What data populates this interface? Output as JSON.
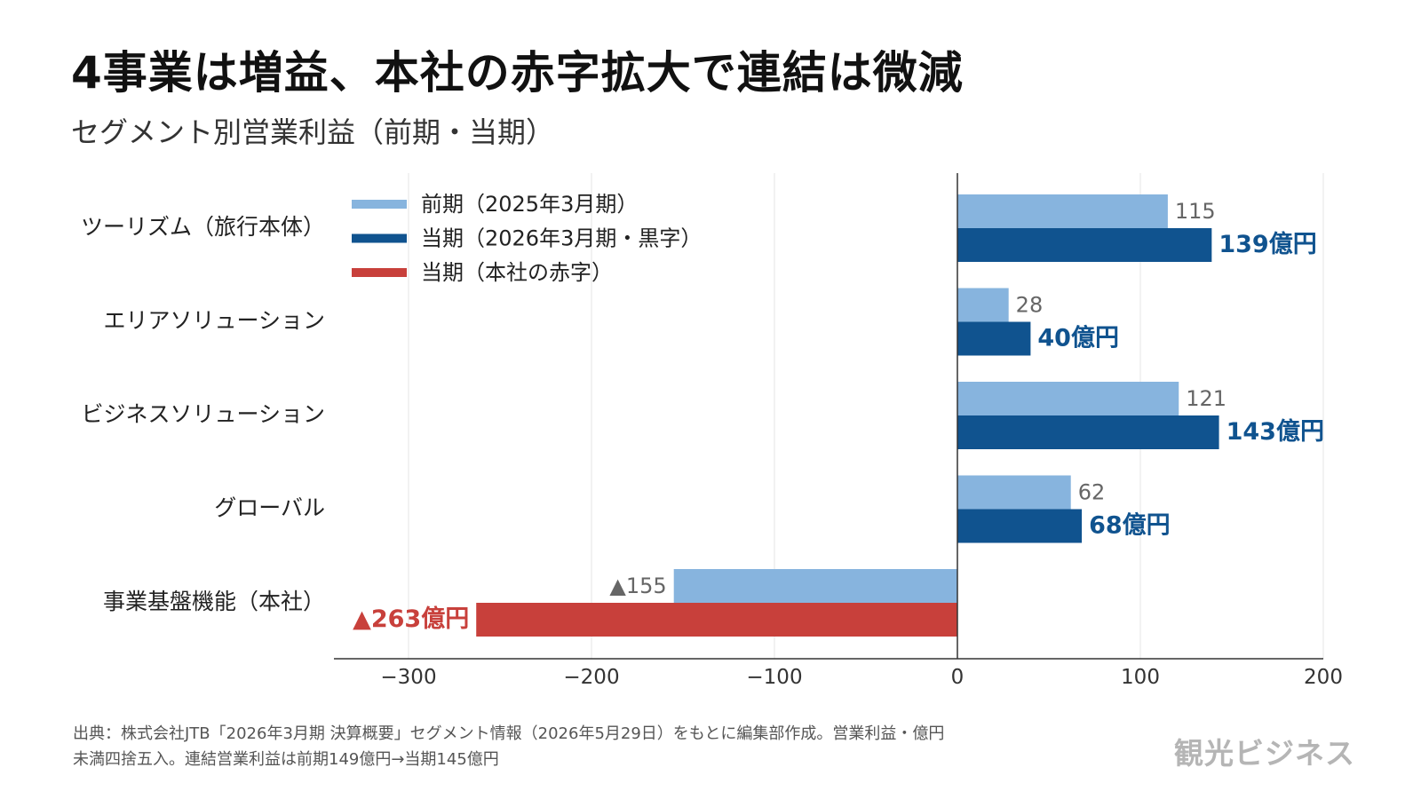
{
  "title": "4事業は増益、本社の赤字拡大で連結は微減",
  "subtitle": "セグメント別営業利益（前期・当期）",
  "colors": {
    "prior": "#87b4de",
    "current": "#10538f",
    "current_negative": "#c8403b",
    "current_label": "#10538f",
    "negative_label": "#c8403b",
    "prior_label": "#666666",
    "grid": "#e6e6e6",
    "axis": "#333333"
  },
  "chart_data": {
    "type": "bar",
    "orientation": "horizontal",
    "categories": [
      "ツーリズム（旅行本体）",
      "エリアソリューション",
      "ビジネスソリューション",
      "グローバル",
      "事業基盤機能（本社）"
    ],
    "series": [
      {
        "name": "前期（2025年3月期）",
        "values": [
          115,
          28,
          121,
          62,
          -155
        ],
        "labels": [
          "115",
          "28",
          "121",
          "62",
          "▲155"
        ]
      },
      {
        "name": "当期（2026年3月期・黒字）",
        "values": [
          139,
          40,
          143,
          68,
          -263
        ],
        "labels": [
          "139億円",
          "40億円",
          "143億円",
          "68億円",
          "▲263億円"
        ]
      }
    ],
    "legend": [
      {
        "name": "前期（2025年3月期）",
        "color_key": "prior"
      },
      {
        "name": "当期（2026年3月期・黒字）",
        "color_key": "current"
      },
      {
        "name": "当期（本社の赤字）",
        "color_key": "current_negative"
      }
    ],
    "legend_position": "top-left",
    "xlim": [
      -340,
      200
    ],
    "xticks": [
      -300,
      -200,
      -100,
      0,
      100,
      200
    ],
    "xtick_labels": [
      "−300",
      "−200",
      "−100",
      "0",
      "100",
      "200"
    ],
    "grid": true
  },
  "footer": {
    "line1": "出典：株式会社JTB「2026年3月期 決算概要」セグメント情報（2026年5月29日）をもとに編集部作成。営業利益・億円",
    "line2": "未満四捨五入。連結営業利益は前期149億円→当期145億円"
  },
  "brand": "観光ビジネス"
}
